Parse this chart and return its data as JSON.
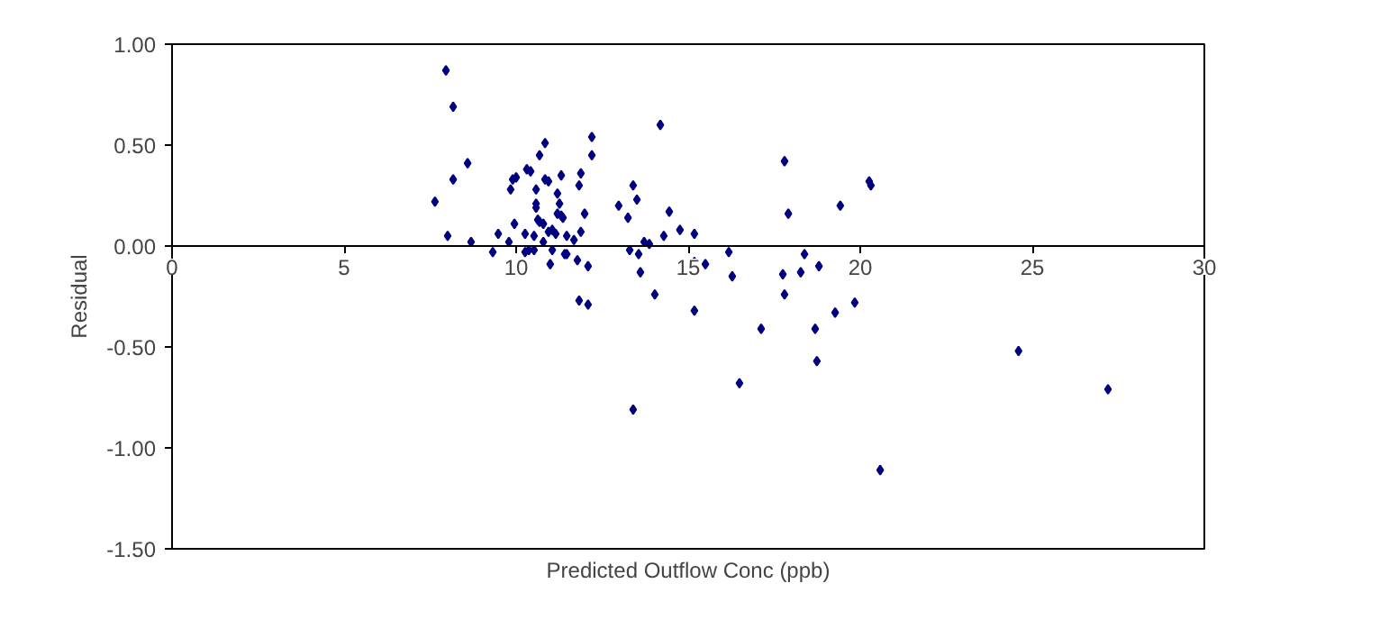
{
  "chart_data": {
    "type": "scatter",
    "xlabel": "Predicted Outflow Conc (ppb)",
    "ylabel": "Residual",
    "xlim": [
      0,
      30
    ],
    "xticks": [
      0,
      5,
      10,
      15,
      20,
      25,
      30
    ],
    "ylim": [
      -1.5,
      1.0
    ],
    "yticks": [
      {
        "value": -1.5,
        "label": "-1.50"
      },
      {
        "value": -1.0,
        "label": "-1.00"
      },
      {
        "value": -0.5,
        "label": "-0.50"
      },
      {
        "value": 0,
        "label": "0.00"
      },
      {
        "value": 0.5,
        "label": "0.50"
      },
      {
        "value": 1.0,
        "label": "1.00"
      }
    ],
    "grid": false,
    "marker": "diamond",
    "series": [
      {
        "color": "#000080",
        "x": [
          7.64,
          7.96,
          8.17,
          8.17,
          8.01,
          8.59,
          8.69,
          9.48,
          9.32,
          9.79,
          9.84,
          9.9,
          10.0,
          9.95,
          10.26,
          10.31,
          10.42,
          10.26,
          10.37,
          10.52,
          10.52,
          10.58,
          10.58,
          10.58,
          10.63,
          10.68,
          10.68,
          10.84,
          10.79,
          10.79,
          10.84,
          10.94,
          10.99,
          10.94,
          11.05,
          11.15,
          11.2,
          11.26,
          11.2,
          11.31,
          11.36,
          11.31,
          11.05,
          11.41,
          11.47,
          11.47,
          11.68,
          11.88,
          11.78,
          12.09,
          11.83,
          11.88,
          11.99,
          12.2,
          12.2,
          12.98,
          13.4,
          13.51,
          13.25,
          13.3,
          13.56,
          13.61,
          13.72,
          13.87,
          14.03,
          14.19,
          14.29,
          14.45,
          14.76,
          11.83,
          12.09,
          13.4,
          15.18,
          15.18,
          15.5,
          15.18,
          16.18,
          16.28,
          16.49,
          17.12,
          17.8,
          17.91,
          17.75,
          17.8,
          18.38,
          18.27,
          18.8,
          18.69,
          18.74,
          19.27,
          19.42,
          19.84,
          20.26,
          20.31,
          20.58,
          24.6,
          27.2
        ],
        "values": [
          0.22,
          0.87,
          0.69,
          0.33,
          0.05,
          0.41,
          0.02,
          0.06,
          -0.03,
          0.02,
          0.28,
          0.33,
          0.34,
          0.11,
          0.06,
          0.38,
          0.37,
          -0.03,
          -0.02,
          -0.02,
          0.05,
          0.28,
          0.21,
          0.19,
          0.13,
          0.12,
          0.45,
          0.51,
          0.11,
          0.02,
          0.33,
          0.32,
          -0.09,
          0.07,
          0.08,
          0.06,
          0.26,
          0.21,
          0.16,
          0.15,
          0.14,
          0.35,
          -0.02,
          -0.04,
          -0.04,
          0.05,
          0.03,
          0.07,
          -0.07,
          -0.1,
          0.3,
          0.36,
          0.16,
          0.54,
          0.45,
          0.2,
          0.3,
          0.23,
          0.14,
          -0.02,
          -0.04,
          -0.13,
          0.02,
          0.01,
          -0.24,
          0.6,
          0.05,
          0.17,
          0.08,
          -0.27,
          -0.29,
          -0.81,
          0.06,
          -0.08,
          -0.09,
          -0.32,
          -0.03,
          -0.15,
          -0.68,
          -0.41,
          0.42,
          0.16,
          -0.14,
          -0.24,
          -0.04,
          -0.13,
          -0.1,
          -0.41,
          -0.57,
          -0.33,
          0.2,
          -0.28,
          0.32,
          0.3,
          -1.11,
          -0.52,
          -0.71
        ]
      }
    ]
  }
}
